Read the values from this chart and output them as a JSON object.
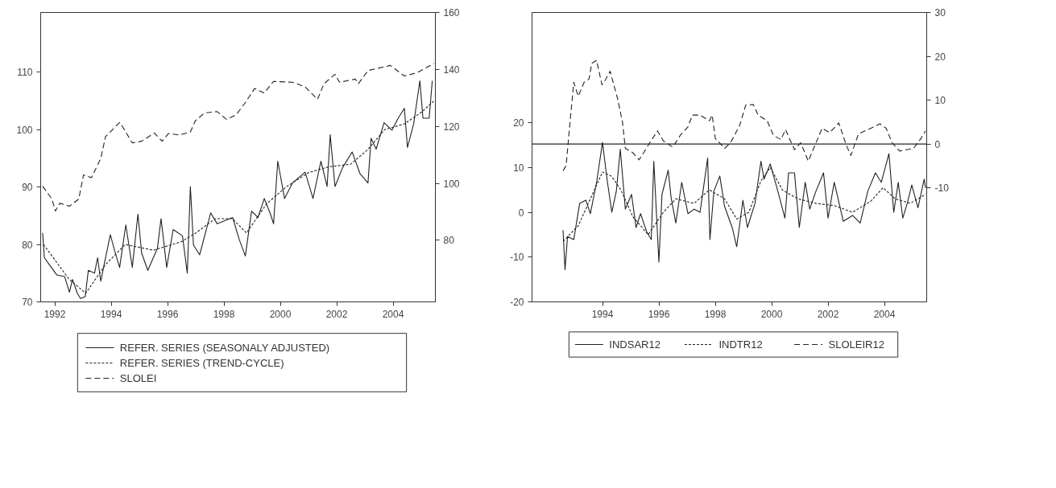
{
  "chart_data": [
    {
      "type": "line",
      "xlim": [
        1991.5,
        2005.5
      ],
      "xticks": [
        1992,
        1994,
        1996,
        1998,
        2000,
        2002,
        2004
      ],
      "ylim": [
        70,
        120.4
      ],
      "yticks": [
        70,
        80,
        90,
        100,
        110
      ],
      "y2lim": [
        58.4,
        160
      ],
      "y2ticks": [
        80,
        100,
        120,
        140,
        160
      ],
      "grid": false,
      "legend": "bottom",
      "marker": "none",
      "series": [
        {
          "name": "REFER. SERIES (SEASONALY ADJUSTED)",
          "color": "#222222",
          "line_style": "solid",
          "x": [
            1991.57,
            1991.63,
            1991.79,
            1992.07,
            1992.35,
            1992.52,
            1992.63,
            1992.8,
            1992.91,
            1993.08,
            1993.19,
            1993.41,
            1993.52,
            1993.63,
            1993.97,
            1994.13,
            1994.3,
            1994.52,
            1994.75,
            1994.95,
            1995.08,
            1995.3,
            1995.64,
            1995.77,
            1995.97,
            1996.2,
            1996.53,
            1996.7,
            1996.81,
            1996.92,
            1997.14,
            1997.53,
            1997.76,
            1998.31,
            1998.54,
            1998.76,
            1998.98,
            1999.21,
            1999.43,
            1999.65,
            1999.76,
            1999.91,
            2000.15,
            2000.43,
            2000.88,
            2001.16,
            2001.44,
            2001.66,
            2001.77,
            2001.94,
            2002.21,
            2002.55,
            2002.83,
            2003.11,
            2003.22,
            2003.4,
            2003.68,
            2003.96,
            2004.18,
            2004.4,
            2004.51,
            2004.73,
            2004.95,
            2005.06,
            2005.28,
            2005.39
          ],
          "values": [
            82,
            77.7,
            76.6,
            74.7,
            74.4,
            71.7,
            73.9,
            71.5,
            70.6,
            70.9,
            75.5,
            75,
            77.7,
            73.6,
            81.7,
            78.8,
            76,
            83.4,
            76,
            85.3,
            78.5,
            75.5,
            79.3,
            84.5,
            76,
            82.6,
            81.5,
            75,
            90.1,
            79.9,
            78.2,
            85.5,
            83.6,
            84.7,
            80.9,
            78,
            85.8,
            84.7,
            88,
            85.3,
            83.6,
            94.5,
            88,
            90.7,
            92.6,
            88,
            94.5,
            90.1,
            99.1,
            90.1,
            93.4,
            96.1,
            92.3,
            90.7,
            98.5,
            96.6,
            101.2,
            99.9,
            102,
            103.7,
            96.9,
            101,
            108.5,
            102,
            102,
            108.5
          ]
        },
        {
          "name": "REFER. SERIES (TREND-CYCLE)",
          "color": "#222222",
          "line_style": "dotted",
          "x": [
            1991.6,
            1992.5,
            1993.1,
            1993.8,
            1994.5,
            1995.5,
            1996.5,
            1997,
            1997.7,
            1998.3,
            1998.8,
            1999.5,
            2000.2,
            2001,
            2001.7,
            2002.5,
            2003.1,
            2003.7,
            2004.4,
            2005,
            2005.45
          ],
          "values": [
            80,
            74,
            71.5,
            76.5,
            80,
            79,
            80.5,
            82,
            84.5,
            84.5,
            82,
            87,
            90,
            92.5,
            93.5,
            94,
            96.5,
            100,
            101,
            103,
            105
          ]
        },
        {
          "name": "SLOLEI",
          "color": "#222222",
          "line_style": "dashed",
          "axis": "y2",
          "x": [
            1991.57,
            1991.9,
            1992.02,
            1992.18,
            1992.52,
            1992.85,
            1993.02,
            1993.3,
            1993.63,
            1993.8,
            1994.3,
            1994.41,
            1994.75,
            1995.08,
            1995.53,
            1995.81,
            1996.03,
            1996.42,
            1996.81,
            1996.98,
            1997.31,
            1997.76,
            1998.09,
            1998.43,
            1998.76,
            1999.09,
            1999.43,
            1999.76,
            2000.43,
            2000.88,
            2001.32,
            2001.55,
            2001.94,
            2002.1,
            2002.66,
            2002.77,
            2003.11,
            2003.9,
            2004.4,
            2004.84,
            2005.45
          ],
          "values": [
            99,
            94.5,
            90.3,
            93,
            92,
            94.5,
            103,
            102,
            108.7,
            116.4,
            121.4,
            119.8,
            114.2,
            114.8,
            117.7,
            114.8,
            117.5,
            117,
            118,
            121.9,
            124.7,
            125.2,
            122.5,
            124,
            128.4,
            133.3,
            131.7,
            135.8,
            135.5,
            133.9,
            129.5,
            135,
            138.3,
            135.5,
            136.6,
            135,
            139.6,
            141.4,
            137.7,
            138.8,
            142.1
          ]
        }
      ]
    },
    {
      "type": "line",
      "xlim": [
        1991.5,
        2005.5
      ],
      "xticks": [
        1994,
        1996,
        1998,
        2000,
        2002,
        2004
      ],
      "ylim": [
        -20,
        44.6
      ],
      "yticks": [
        -20,
        -10,
        0,
        10,
        20
      ],
      "y2lim": [
        -36,
        30
      ],
      "y2ticks": [
        -10,
        0,
        10,
        20,
        30
      ],
      "grid": false,
      "legend": "bottom",
      "marker": "none",
      "ref_lines": [
        {
          "axis": "y2",
          "value": 0,
          "color": "#222222"
        }
      ],
      "series": [
        {
          "name": "INDSAR12",
          "color": "#222222",
          "line_style": "solid",
          "x": [
            1992.6,
            1992.67,
            1992.76,
            1992.98,
            1993.19,
            1993.41,
            1993.57,
            1993.79,
            1994.0,
            1994.16,
            1994.33,
            1994.49,
            1994.63,
            1994.81,
            1995.03,
            1995.19,
            1995.35,
            1995.57,
            1995.73,
            1995.82,
            1996.0,
            1996.11,
            1996.33,
            1996.43,
            1996.6,
            1996.81,
            1997.03,
            1997.25,
            1997.46,
            1997.73,
            1997.81,
            1997.95,
            1998.16,
            1998.33,
            1998.6,
            1998.76,
            1998.98,
            1999.14,
            1999.41,
            1999.62,
            1999.73,
            1999.95,
            2000.22,
            2000.47,
            2000.6,
            2000.81,
            2000.98,
            2001.19,
            2001.35,
            2001.57,
            2001.84,
            2002.0,
            2002.22,
            2002.54,
            2002.87,
            2003.14,
            2003.41,
            2003.68,
            2003.89,
            2004.16,
            2004.33,
            2004.49,
            2004.65,
            2004.81,
            2004.97,
            2005.19,
            2005.41,
            2005.46
          ],
          "values": [
            -4,
            -12.8,
            -5.4,
            -6.1,
            2,
            2.7,
            -0.3,
            6.7,
            15.6,
            7.4,
            0,
            4.7,
            14.1,
            0.7,
            4,
            -3.4,
            -0.3,
            -4.4,
            -6.1,
            11.4,
            -11.1,
            4,
            9.4,
            3.4,
            -2.4,
            6.7,
            -0.3,
            0.7,
            0,
            12.1,
            -6.1,
            4.7,
            8.1,
            1.3,
            -3.4,
            -7.7,
            2.7,
            -3.4,
            2,
            11.4,
            7.4,
            10.8,
            4.7,
            -1.3,
            8.8,
            8.8,
            -3.4,
            6.7,
            0.7,
            4.7,
            8.8,
            -1.3,
            6.7,
            -2,
            -0.7,
            -2.4,
            4.7,
            8.8,
            6.7,
            13.1,
            0,
            6.7,
            -1.3,
            2,
            6.1,
            1,
            7.4,
            5.4
          ]
        },
        {
          "name": "INDTR12",
          "color": "#222222",
          "line_style": "dotted",
          "x": [
            1992.6,
            1993.14,
            1993.57,
            1994.0,
            1994.33,
            1994.65,
            1995.08,
            1995.62,
            1996.16,
            1996.6,
            1997.25,
            1997.79,
            1998.33,
            1998.76,
            1999.19,
            1999.62,
            1999.95,
            2000.38,
            2000.92,
            2001.57,
            2002.22,
            2002.87,
            2003.52,
            2003.95,
            2004.38,
            2004.92,
            2005.46
          ],
          "values": [
            -6.5,
            -3,
            3,
            9,
            8,
            5,
            -1,
            -5,
            0,
            3,
            2,
            5,
            3,
            -1.5,
            0,
            7,
            10,
            5,
            3,
            2,
            1.5,
            0,
            2.5,
            5.5,
            3,
            2,
            4
          ]
        },
        {
          "name": "SLOLEIR12",
          "color": "#222222",
          "line_style": "dashed",
          "axis": "y2",
          "x": [
            1992.6,
            1992.71,
            1992.81,
            1992.98,
            1993.14,
            1993.35,
            1993.52,
            1993.62,
            1993.79,
            1993.98,
            1994.11,
            1994.27,
            1994.54,
            1994.71,
            1994.81,
            1995.08,
            1995.3,
            1995.62,
            1995.95,
            1996.16,
            1996.49,
            1996.76,
            1997.03,
            1997.19,
            1997.46,
            1997.79,
            1997.89,
            1998.0,
            1998.33,
            1998.54,
            1998.87,
            1999.08,
            1999.35,
            1999.52,
            1999.84,
            2000.06,
            2000.33,
            2000.49,
            2000.81,
            2001.03,
            2001.3,
            2001.79,
            2002.06,
            2002.38,
            2002.65,
            2002.81,
            2003.08,
            2003.52,
            2003.84,
            2004.06,
            2004.27,
            2004.54,
            2005.03,
            2005.3,
            2005.46
          ],
          "values": [
            -6.1,
            -4.9,
            2.3,
            14.1,
            10.9,
            14.1,
            14.8,
            18.4,
            19.1,
            13.5,
            14.7,
            16.6,
            10.2,
            4.9,
            -1,
            -2,
            -3.6,
            -0.3,
            3,
            0.7,
            -0.7,
            2,
            3.9,
            6.6,
            6.6,
            5.3,
            6.6,
            1.3,
            -1,
            0.3,
            4.3,
            8.9,
            9,
            6.6,
            5.3,
            2,
            1,
            3.3,
            -1.3,
            0.3,
            -3.9,
            3.6,
            2.6,
            4.8,
            -0.3,
            -2.6,
            2.3,
            3.6,
            4.6,
            3.6,
            0.3,
            -1.6,
            -1,
            1.3,
            3
          ]
        }
      ]
    }
  ]
}
